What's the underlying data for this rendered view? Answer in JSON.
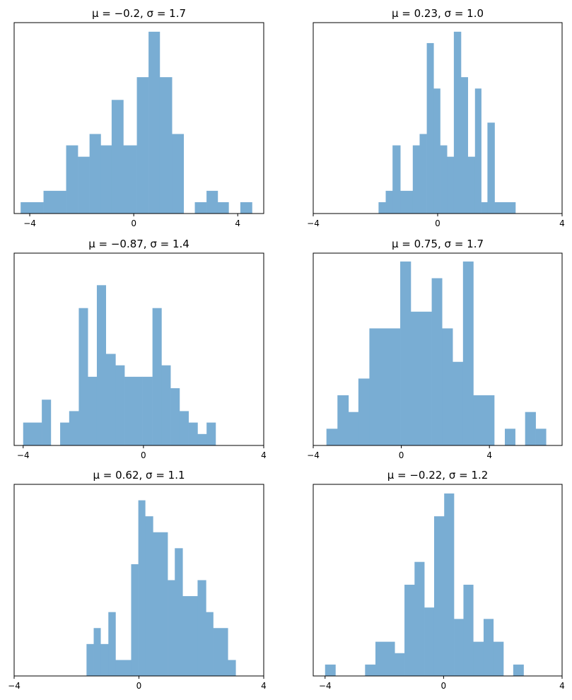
{
  "figure": {
    "bar_color": "#79add3",
    "axis_color": "#000000"
  },
  "chart_data": [
    {
      "type": "bar",
      "title": "μ = −0.2,    σ = 1.7",
      "xlim": [
        -4.6,
        5.0
      ],
      "xticks": [
        -4,
        0,
        4
      ],
      "xtick_labels": [
        "−4",
        "0",
        "4"
      ],
      "ylim": [
        0,
        16.8
      ],
      "bins": [
        {
          "x0": -4.35,
          "x1": -3.47,
          "count": 1
        },
        {
          "x0": -3.47,
          "x1": -2.6,
          "count": 2
        },
        {
          "x0": -2.6,
          "x1": -2.15,
          "count": 6
        },
        {
          "x0": -2.15,
          "x1": -1.7,
          "count": 5
        },
        {
          "x0": -1.7,
          "x1": -1.27,
          "count": 7
        },
        {
          "x0": -1.27,
          "x1": -0.85,
          "count": 6
        },
        {
          "x0": -0.85,
          "x1": -0.4,
          "count": 10
        },
        {
          "x0": -0.4,
          "x1": 0.12,
          "count": 6
        },
        {
          "x0": 0.12,
          "x1": 0.57,
          "count": 12
        },
        {
          "x0": 0.57,
          "x1": 1.0,
          "count": 16
        },
        {
          "x0": 1.0,
          "x1": 1.47,
          "count": 12
        },
        {
          "x0": 1.47,
          "x1": 1.92,
          "count": 7
        },
        {
          "x0": 2.35,
          "x1": 2.8,
          "count": 1
        },
        {
          "x0": 2.8,
          "x1": 3.23,
          "count": 2
        },
        {
          "x0": 3.23,
          "x1": 3.65,
          "count": 1
        },
        {
          "x0": 4.1,
          "x1": 4.55,
          "count": 1
        }
      ]
    },
    {
      "type": "bar",
      "title": "μ = 0.23,    σ = 1.0",
      "xlim": [
        -4,
        4
      ],
      "xticks": [
        -4,
        0,
        4
      ],
      "xtick_labels": [
        "−4",
        "0",
        "4"
      ],
      "ylim": [
        0,
        16.8
      ],
      "bins": [
        {
          "x0": -1.9,
          "x1": -1.67,
          "count": 1
        },
        {
          "x0": -1.67,
          "x1": -1.45,
          "count": 2
        },
        {
          "x0": -1.45,
          "x1": -1.2,
          "count": 6
        },
        {
          "x0": -1.2,
          "x1": -0.8,
          "count": 2
        },
        {
          "x0": -0.8,
          "x1": -0.58,
          "count": 6
        },
        {
          "x0": -0.58,
          "x1": -0.35,
          "count": 7
        },
        {
          "x0": -0.35,
          "x1": -0.13,
          "count": 15
        },
        {
          "x0": -0.13,
          "x1": 0.08,
          "count": 11
        },
        {
          "x0": 0.08,
          "x1": 0.3,
          "count": 6
        },
        {
          "x0": 0.3,
          "x1": 0.52,
          "count": 5
        },
        {
          "x0": 0.52,
          "x1": 0.75,
          "count": 16
        },
        {
          "x0": 0.75,
          "x1": 0.97,
          "count": 12
        },
        {
          "x0": 0.97,
          "x1": 1.2,
          "count": 5
        },
        {
          "x0": 1.2,
          "x1": 1.4,
          "count": 11
        },
        {
          "x0": 1.4,
          "x1": 1.6,
          "count": 1
        },
        {
          "x0": 1.6,
          "x1": 1.83,
          "count": 8
        },
        {
          "x0": 1.83,
          "x1": 2.5,
          "count": 1
        }
      ]
    },
    {
      "type": "bar",
      "title": "μ = −0.87,    σ = 1.4",
      "xlim": [
        -4.3,
        4
      ],
      "xticks": [
        -4,
        0,
        4
      ],
      "xtick_labels": [
        "−4",
        "0",
        "4"
      ],
      "ylim": [
        0,
        8.4
      ],
      "bins": [
        {
          "x0": -4.0,
          "x1": -3.38,
          "count": 1
        },
        {
          "x0": -3.38,
          "x1": -3.08,
          "count": 2
        },
        {
          "x0": -2.77,
          "x1": -2.47,
          "count": 1
        },
        {
          "x0": -2.47,
          "x1": -2.15,
          "count": 1.5
        },
        {
          "x0": -2.15,
          "x1": -1.85,
          "count": 6
        },
        {
          "x0": -1.85,
          "x1": -1.55,
          "count": 3
        },
        {
          "x0": -1.55,
          "x1": -1.25,
          "count": 7
        },
        {
          "x0": -1.25,
          "x1": -0.93,
          "count": 4
        },
        {
          "x0": -0.93,
          "x1": -0.63,
          "count": 3.5
        },
        {
          "x0": -0.63,
          "x1": -0.32,
          "count": 3
        },
        {
          "x0": -0.32,
          "x1": -0.03,
          "count": 3
        },
        {
          "x0": -0.03,
          "x1": 0.3,
          "count": 3
        },
        {
          "x0": 0.3,
          "x1": 0.6,
          "count": 6
        },
        {
          "x0": 0.6,
          "x1": 0.9,
          "count": 3.5
        },
        {
          "x0": 0.9,
          "x1": 1.2,
          "count": 2.5
        },
        {
          "x0": 1.2,
          "x1": 1.5,
          "count": 1.5
        },
        {
          "x0": 1.5,
          "x1": 1.8,
          "count": 1
        },
        {
          "x0": 1.8,
          "x1": 2.1,
          "count": 0.5
        },
        {
          "x0": 2.1,
          "x1": 2.4,
          "count": 1
        }
      ]
    },
    {
      "type": "bar",
      "title": "μ = 0.75,    σ = 1.7",
      "xlim": [
        -4,
        7.3
      ],
      "xticks": [
        -4,
        0,
        4
      ],
      "xtick_labels": [
        "−4",
        "0",
        "4"
      ],
      "ylim": [
        0,
        11.5
      ],
      "bins": [
        {
          "x0": -3.4,
          "x1": -2.9,
          "count": 1
        },
        {
          "x0": -2.9,
          "x1": -2.4,
          "count": 3
        },
        {
          "x0": -2.4,
          "x1": -1.95,
          "count": 2
        },
        {
          "x0": -1.95,
          "x1": -1.45,
          "count": 4
        },
        {
          "x0": -1.45,
          "x1": -0.05,
          "count": 7
        },
        {
          "x0": -0.05,
          "x1": 0.43,
          "count": 11
        },
        {
          "x0": 0.43,
          "x1": 1.38,
          "count": 8
        },
        {
          "x0": 1.38,
          "x1": 1.85,
          "count": 10
        },
        {
          "x0": 1.85,
          "x1": 2.33,
          "count": 7
        },
        {
          "x0": 2.33,
          "x1": 2.8,
          "count": 5
        },
        {
          "x0": 2.8,
          "x1": 3.27,
          "count": 11
        },
        {
          "x0": 3.27,
          "x1": 4.22,
          "count": 3
        },
        {
          "x0": 4.7,
          "x1": 5.17,
          "count": 1
        },
        {
          "x0": 5.62,
          "x1": 6.1,
          "count": 2
        },
        {
          "x0": 6.1,
          "x1": 6.57,
          "count": 1
        }
      ]
    },
    {
      "type": "bar",
      "title": "μ = 0.62,    σ = 1.1",
      "xlim": [
        -4,
        4
      ],
      "xticks": [
        -4,
        0,
        4
      ],
      "xtick_labels": [
        "−4",
        "0",
        "4"
      ],
      "ylim": [
        0,
        12
      ],
      "bins": [
        {
          "x0": -1.68,
          "x1": -1.45,
          "count": 2
        },
        {
          "x0": -1.45,
          "x1": -1.23,
          "count": 3
        },
        {
          "x0": -1.23,
          "x1": -0.98,
          "count": 2
        },
        {
          "x0": -0.98,
          "x1": -0.75,
          "count": 4
        },
        {
          "x0": -0.75,
          "x1": -0.25,
          "count": 1
        },
        {
          "x0": -0.25,
          "x1": -0.02,
          "count": 7
        },
        {
          "x0": -0.02,
          "x1": 0.2,
          "count": 11
        },
        {
          "x0": 0.2,
          "x1": 0.45,
          "count": 10
        },
        {
          "x0": 0.45,
          "x1": 0.92,
          "count": 9
        },
        {
          "x0": 0.92,
          "x1": 1.15,
          "count": 6
        },
        {
          "x0": 1.15,
          "x1": 1.4,
          "count": 8
        },
        {
          "x0": 1.4,
          "x1": 1.88,
          "count": 5
        },
        {
          "x0": 1.88,
          "x1": 2.15,
          "count": 6
        },
        {
          "x0": 2.15,
          "x1": 2.38,
          "count": 4
        },
        {
          "x0": 2.38,
          "x1": 2.85,
          "count": 3
        },
        {
          "x0": 2.85,
          "x1": 3.1,
          "count": 1
        }
      ]
    },
    {
      "type": "bar",
      "title": "μ = −0.22,    σ = 1.2",
      "xlim": [
        -4.4,
        4
      ],
      "xticks": [
        -4,
        0,
        4
      ],
      "xtick_labels": [
        "−4",
        "0",
        "4"
      ],
      "ylim": [
        0,
        16.8
      ],
      "bins": [
        {
          "x0": -4.0,
          "x1": -3.65,
          "count": 1
        },
        {
          "x0": -2.65,
          "x1": -2.3,
          "count": 1
        },
        {
          "x0": -2.3,
          "x1": -1.65,
          "count": 3
        },
        {
          "x0": -1.65,
          "x1": -1.32,
          "count": 2
        },
        {
          "x0": -1.32,
          "x1": -0.98,
          "count": 8
        },
        {
          "x0": -0.98,
          "x1": -0.65,
          "count": 10
        },
        {
          "x0": -0.65,
          "x1": -0.32,
          "count": 6
        },
        {
          "x0": -0.32,
          "x1": 0.02,
          "count": 14
        },
        {
          "x0": 0.02,
          "x1": 0.35,
          "count": 16
        },
        {
          "x0": 0.35,
          "x1": 0.67,
          "count": 5
        },
        {
          "x0": 0.67,
          "x1": 1.0,
          "count": 8
        },
        {
          "x0": 1.0,
          "x1": 1.35,
          "count": 3
        },
        {
          "x0": 1.35,
          "x1": 1.68,
          "count": 5
        },
        {
          "x0": 1.68,
          "x1": 2.02,
          "count": 3
        },
        {
          "x0": 2.35,
          "x1": 2.7,
          "count": 1
        }
      ]
    }
  ]
}
